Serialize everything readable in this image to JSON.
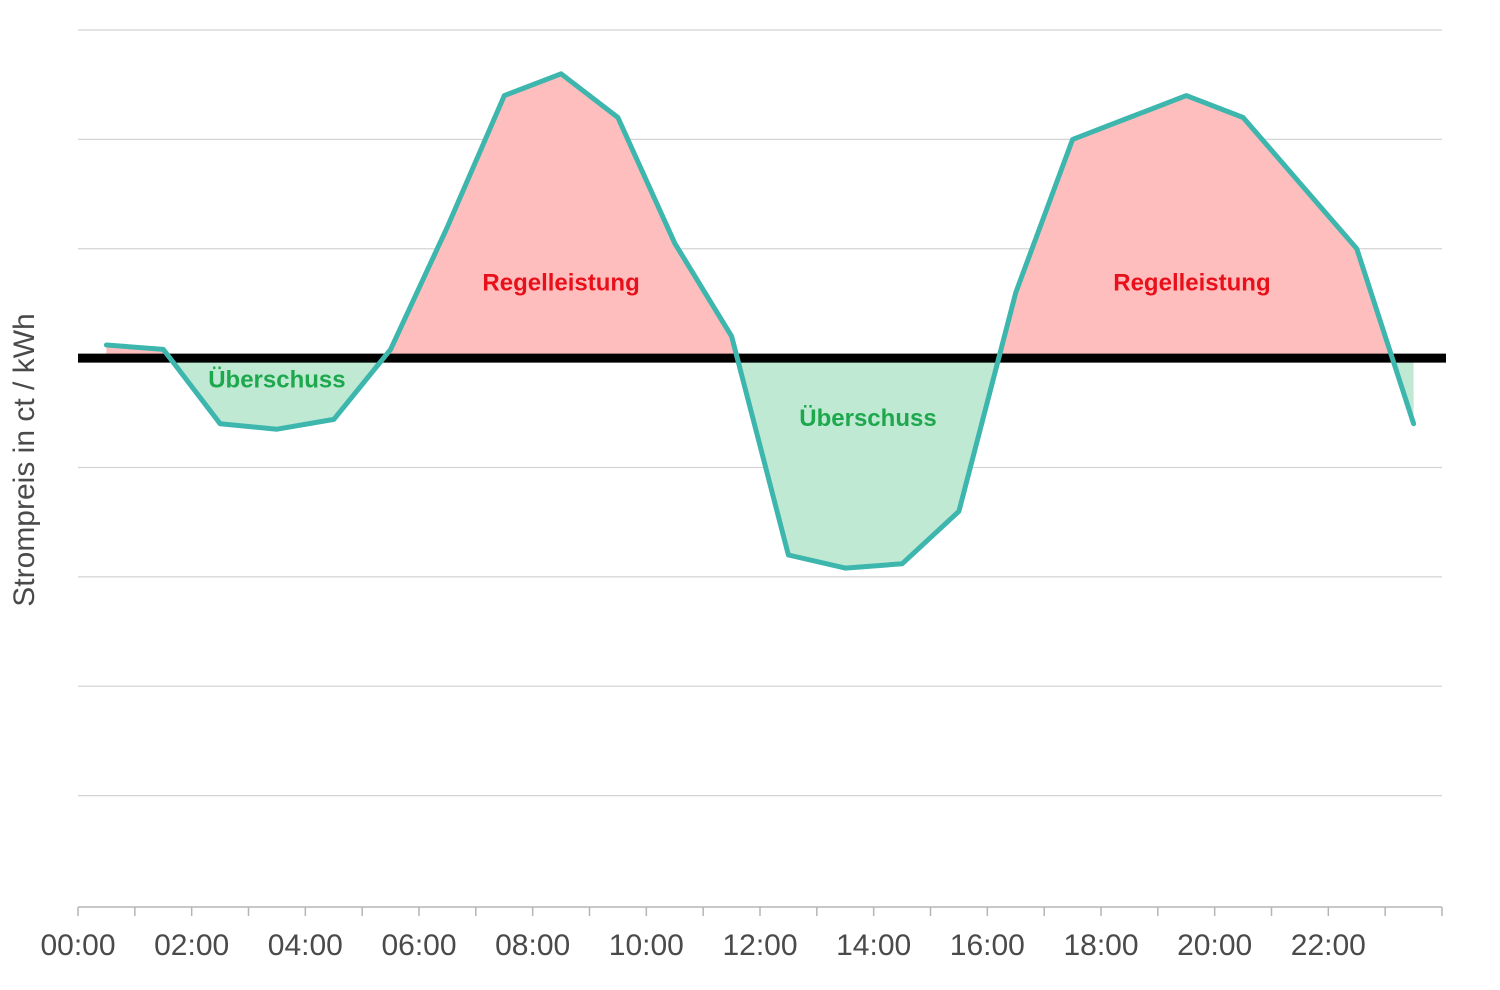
{
  "chart_data": {
    "type": "area",
    "ylabel": "Strompreis in ct / kWh",
    "x_tick_labels": [
      "00:00",
      "02:00",
      "04:00",
      "06:00",
      "08:00",
      "10:00",
      "12:00",
      "14:00",
      "16:00",
      "18:00",
      "20:00",
      "22:00"
    ],
    "xlim": [
      0,
      24
    ],
    "ylim": [
      -5,
      3
    ],
    "gridlines_y": [
      3,
      2,
      1,
      -1,
      -2,
      -3,
      -4
    ],
    "baseline": 0,
    "series": [
      {
        "x": [
          0.5,
          1.5,
          2.5,
          3.5,
          4.5,
          5.5,
          6.5,
          7.5,
          8.5,
          9.5,
          10.5,
          11.5,
          12.5,
          13.5,
          14.5,
          15.5,
          16.5,
          17.5,
          18.5,
          19.5,
          20.5,
          21.5,
          22.5,
          23.5
        ],
        "y": [
          0.12,
          0.08,
          -0.6,
          -0.65,
          -0.56,
          0.08,
          1.2,
          2.4,
          2.6,
          2.2,
          1.05,
          0.2,
          -1.8,
          -1.92,
          -1.88,
          -1.4,
          0.6,
          2.0,
          2.2,
          2.4,
          2.2,
          1.6,
          1.0,
          -0.6
        ]
      }
    ],
    "annotations": [
      {
        "text": "Regelleistung",
        "x": 8.5,
        "y": 0.62,
        "kind": "positive"
      },
      {
        "text": "Regelleistung",
        "x": 19.6,
        "y": 0.62,
        "kind": "positive"
      },
      {
        "text": "Überschuss",
        "x": 3.5,
        "y": -0.27,
        "kind": "negative"
      },
      {
        "text": "Überschuss",
        "x": 13.9,
        "y": -0.62,
        "kind": "negative"
      }
    ],
    "colors": {
      "line": "#3db6ad",
      "positive_fill": "#ffbebe",
      "negative_fill": "#bfe9d3",
      "positive_text": "#e8111b",
      "negative_text": "#1ea84e",
      "baseline": "#000000",
      "grid": "#d4d4d4",
      "axis": "#b5b5b5"
    },
    "grid": true
  }
}
